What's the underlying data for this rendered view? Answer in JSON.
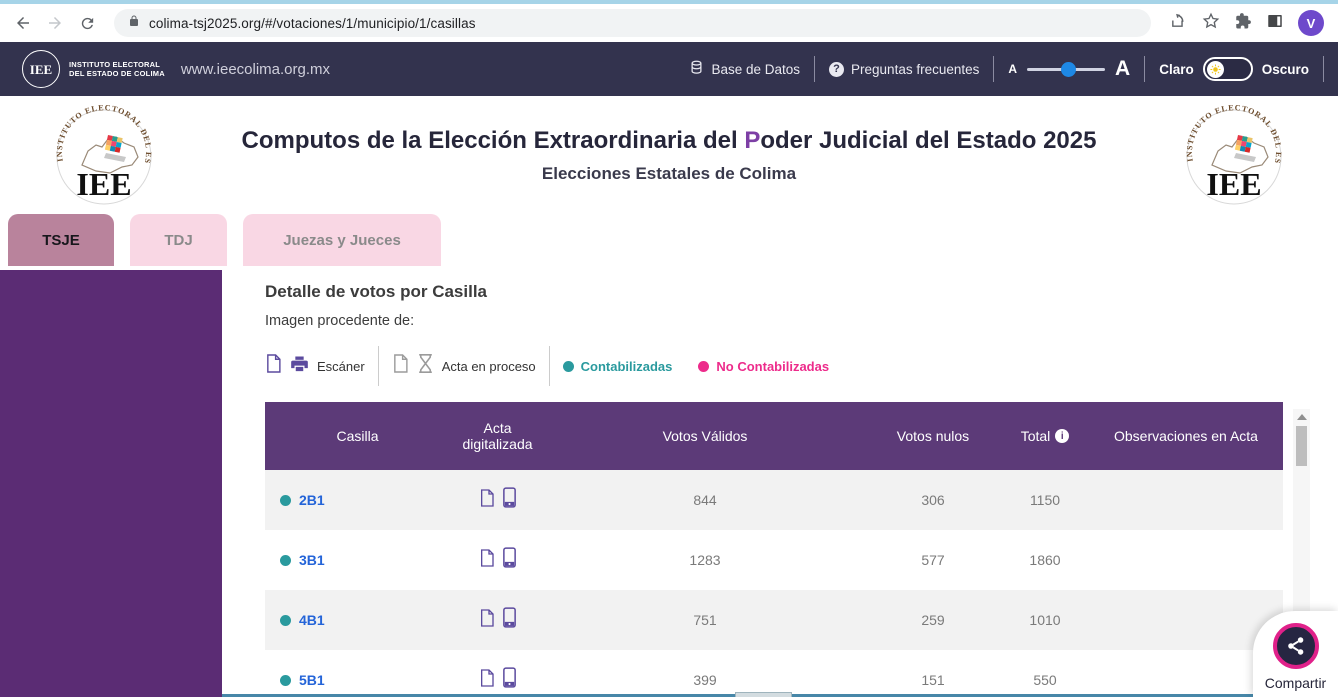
{
  "browser": {
    "url": "colima-tsj2025.org/#/votaciones/1/municipio/1/casillas",
    "avatar_letter": "V"
  },
  "site_nav": {
    "org_line1": "INSTITUTO  ELECTORAL",
    "org_line2": "DEL ESTADO DE COLIMA",
    "website": "www.ieecolima.org.mx",
    "database_label": "Base de Datos",
    "faq_label": "Preguntas frecuentes",
    "faq_icon_char": "?",
    "font_small": "A",
    "font_large": "A",
    "light_label": "Claro",
    "dark_label": "Oscuro"
  },
  "banner": {
    "title_pre": "Computos de la Elección Extraordinaria del ",
    "title_accent": "P",
    "title_post": "oder Judicial del Estado 2025",
    "subtitle": "Elecciones Estatales de Colima",
    "logo_text": "IEE",
    "logo_ring_text": "INSTITUTO ELECTORAL DEL ESTADO DE COLIMA"
  },
  "tabs": [
    {
      "label": "TSJE",
      "active": true
    },
    {
      "label": "TDJ",
      "active": false
    },
    {
      "label": "Juezas y Jueces",
      "active": false
    }
  ],
  "content": {
    "heading": "Detalle de votos por Casilla",
    "subheading": "Imagen procedente de:",
    "legend": {
      "scanner_label": "Escáner",
      "in_process_label": "Acta en proceso",
      "counted_label": "Contabilizadas",
      "not_counted_label": "No Contabilizadas"
    },
    "table": {
      "columns": [
        "Casilla",
        "Acta digitalizada",
        "Votos Válidos",
        "Votos nulos",
        "Total",
        "Observaciones en Acta"
      ],
      "rows": [
        {
          "casilla": "2B1",
          "votos_validos": "844",
          "votos_nulos": "306",
          "total": "1150",
          "observaciones": ""
        },
        {
          "casilla": "3B1",
          "votos_validos": "1283",
          "votos_nulos": "577",
          "total": "1860",
          "observaciones": ""
        },
        {
          "casilla": "4B1",
          "votos_validos": "751",
          "votos_nulos": "259",
          "total": "1010",
          "observaciones": ""
        },
        {
          "casilla": "5B1",
          "votos_validos": "399",
          "votos_nulos": "151",
          "total": "550",
          "observaciones": ""
        }
      ]
    },
    "share_label": "Compartir"
  },
  "colors": {
    "dark_nav": "#33334e",
    "sidebar_purple": "#5b2c74",
    "table_header_purple": "#5c3a78",
    "active_tab": "#b9839c",
    "inactive_tab": "#f9d7e4",
    "counted_teal": "#2a9a9e",
    "not_counted_pink": "#ed2b8b",
    "link_blue": "#2464d8",
    "accent_purple": "#7d3fa5",
    "slider_blue": "#1e88e5"
  }
}
